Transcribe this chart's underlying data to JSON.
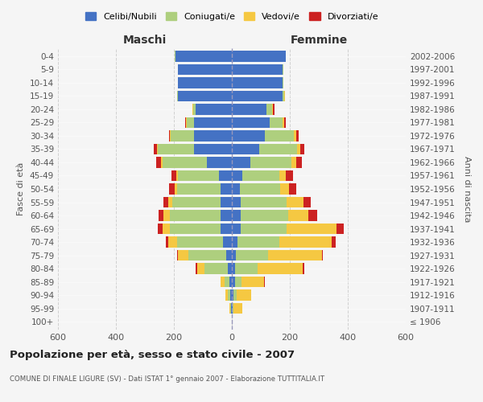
{
  "age_groups": [
    "100+",
    "95-99",
    "90-94",
    "85-89",
    "80-84",
    "75-79",
    "70-74",
    "65-69",
    "60-64",
    "55-59",
    "50-54",
    "45-49",
    "40-44",
    "35-39",
    "30-34",
    "25-29",
    "20-24",
    "15-19",
    "10-14",
    "5-9",
    "0-4"
  ],
  "birth_years": [
    "≤ 1906",
    "1907-1911",
    "1912-1916",
    "1917-1921",
    "1922-1926",
    "1927-1931",
    "1932-1936",
    "1937-1941",
    "1942-1946",
    "1947-1951",
    "1952-1956",
    "1957-1961",
    "1962-1966",
    "1967-1971",
    "1972-1976",
    "1977-1981",
    "1982-1986",
    "1987-1991",
    "1992-1996",
    "1997-2001",
    "2002-2006"
  ],
  "males": {
    "celibi": [
      0,
      2,
      5,
      8,
      15,
      20,
      30,
      40,
      40,
      40,
      38,
      45,
      85,
      130,
      130,
      130,
      125,
      185,
      185,
      185,
      195
    ],
    "coniugati": [
      0,
      3,
      8,
      18,
      80,
      130,
      160,
      175,
      175,
      165,
      150,
      140,
      155,
      125,
      80,
      25,
      8,
      5,
      2,
      2,
      2
    ],
    "vedovi": [
      0,
      2,
      8,
      12,
      25,
      35,
      30,
      25,
      20,
      15,
      10,
      8,
      5,
      3,
      3,
      2,
      2,
      0,
      0,
      0,
      0
    ],
    "divorziati": [
      0,
      0,
      0,
      0,
      5,
      5,
      8,
      15,
      18,
      15,
      20,
      15,
      15,
      12,
      5,
      3,
      2,
      0,
      0,
      0,
      0
    ]
  },
  "females": {
    "nubili": [
      0,
      3,
      5,
      10,
      10,
      15,
      20,
      30,
      30,
      30,
      28,
      35,
      65,
      95,
      115,
      130,
      120,
      175,
      175,
      175,
      185
    ],
    "coniugate": [
      0,
      3,
      12,
      22,
      80,
      110,
      145,
      160,
      165,
      158,
      140,
      130,
      140,
      130,
      100,
      45,
      20,
      5,
      2,
      2,
      2
    ],
    "vedove": [
      0,
      30,
      50,
      80,
      155,
      185,
      180,
      170,
      70,
      60,
      30,
      20,
      18,
      10,
      8,
      5,
      3,
      2,
      0,
      0,
      0
    ],
    "divorziate": [
      0,
      0,
      0,
      3,
      5,
      5,
      12,
      25,
      30,
      25,
      25,
      25,
      20,
      15,
      8,
      5,
      3,
      0,
      0,
      0,
      0
    ]
  },
  "colors": {
    "celibi_nubili": "#4472C4",
    "coniugati_e": "#AECF7E",
    "vedovi_e": "#F5C842",
    "divorziati_e": "#CC2222"
  },
  "xlim": [
    -600,
    600
  ],
  "xticks": [
    -600,
    -400,
    -200,
    0,
    200,
    400,
    600
  ],
  "xticklabels": [
    "600",
    "400",
    "200",
    "0",
    "200",
    "400",
    "600"
  ],
  "title": "Popolazione per età, sesso e stato civile - 2007",
  "subtitle": "COMUNE DI FINALE LIGURE (SV) - Dati ISTAT 1° gennaio 2007 - Elaborazione TUTTITALIA.IT",
  "ylabel_left": "Fasce di età",
  "ylabel_right": "Anni di nascita",
  "label_maschi": "Maschi",
  "label_femmine": "Femmine",
  "legend_labels": [
    "Celibi/Nubili",
    "Coniugati/e",
    "Vedovi/e",
    "Divorziati/e"
  ],
  "bg_color": "#f5f5f5",
  "bar_height": 0.8
}
